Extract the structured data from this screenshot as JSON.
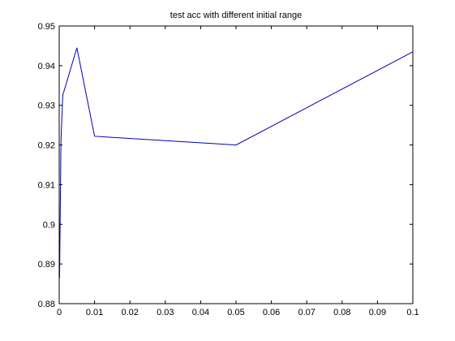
{
  "chart_data": {
    "type": "line",
    "title": "test acc with different initial range",
    "xlabel": "",
    "ylabel": "",
    "xlim": [
      0,
      0.1
    ],
    "ylim": [
      0.88,
      0.95
    ],
    "grid": false,
    "x_ticks": [
      0,
      0.01,
      0.02,
      0.03,
      0.04,
      0.05,
      0.06,
      0.07,
      0.08,
      0.09,
      0.1
    ],
    "x_tick_labels": [
      "0",
      "0.01",
      "0.02",
      "0.03",
      "0.04",
      "0.05",
      "0.06",
      "0.07",
      "0.08",
      "0.09",
      "0.1"
    ],
    "y_ticks": [
      0.88,
      0.89,
      0.9,
      0.91,
      0.92,
      0.93,
      0.94,
      0.95
    ],
    "y_tick_labels": [
      "0.88",
      "0.89",
      "0.9",
      "0.91",
      "0.92",
      "0.93",
      "0.94",
      "0.95"
    ],
    "series": [
      {
        "color": "#0000b3",
        "x": [
          0.0001,
          0.0005,
          0.001,
          0.005,
          0.01,
          0.05,
          0.1
        ],
        "y": [
          0.8865,
          0.921,
          0.9325,
          0.9445,
          0.9222,
          0.92,
          0.9435
        ]
      }
    ]
  }
}
